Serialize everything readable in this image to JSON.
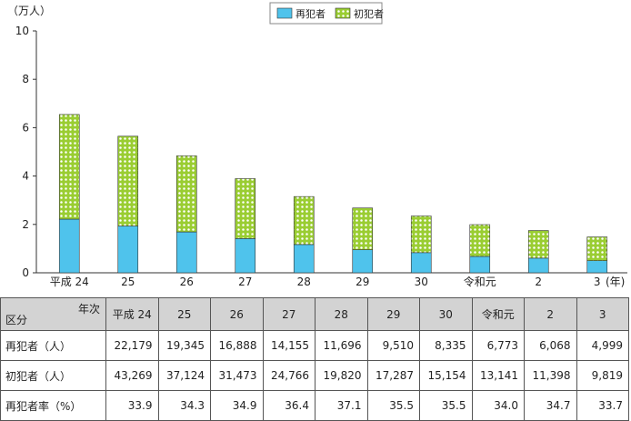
{
  "chart_data": {
    "type": "bar",
    "stacked": true,
    "unit_label": "（万人）",
    "year_unit": "(年)",
    "categories": [
      "平成 24",
      "25",
      "26",
      "27",
      "28",
      "29",
      "30",
      "令和元",
      "2",
      "3"
    ],
    "series": [
      {
        "name": "再犯者",
        "color": "#4fc3ec",
        "values": [
          2.2179,
          1.9345,
          1.6888,
          1.4155,
          1.1696,
          0.951,
          0.8335,
          0.6773,
          0.6068,
          0.4999
        ]
      },
      {
        "name": "初犯者",
        "color": "#9acd32",
        "values": [
          4.3269,
          3.7124,
          3.1473,
          2.4766,
          1.982,
          1.7287,
          1.5154,
          1.3141,
          1.1398,
          0.9819
        ]
      }
    ],
    "yticks": [
      "0",
      "2",
      "4",
      "6",
      "8",
      "10"
    ],
    "ylim": [
      0,
      10
    ],
    "legend_position": "top-center",
    "grid": false
  },
  "table": {
    "corner_top": "年次",
    "corner_bottom": "区分",
    "headers": [
      "平成 24",
      "25",
      "26",
      "27",
      "28",
      "29",
      "30",
      "令和元",
      "2",
      "3"
    ],
    "rows": [
      {
        "label": "再犯者（人）",
        "values": [
          "22,179",
          "19,345",
          "16,888",
          "14,155",
          "11,696",
          "9,510",
          "8,335",
          "6,773",
          "6,068",
          "4,999"
        ]
      },
      {
        "label": "初犯者（人）",
        "values": [
          "43,269",
          "37,124",
          "31,473",
          "24,766",
          "19,820",
          "17,287",
          "15,154",
          "13,141",
          "11,398",
          "9,819"
        ]
      },
      {
        "label": "再犯者率（%）",
        "values": [
          "33.9",
          "34.3",
          "34.9",
          "36.4",
          "37.1",
          "35.5",
          "35.5",
          "34.0",
          "34.7",
          "33.7"
        ]
      }
    ]
  }
}
